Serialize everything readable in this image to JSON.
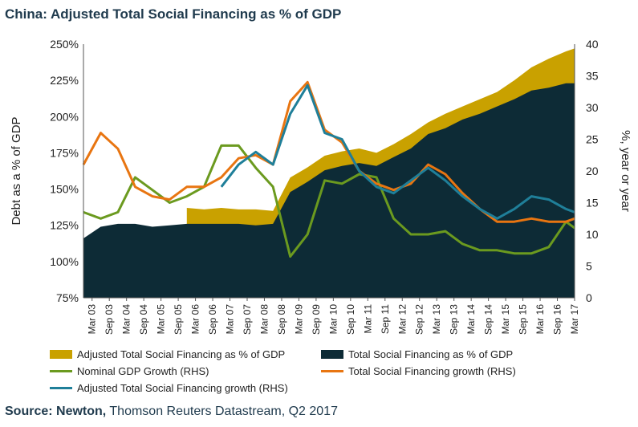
{
  "title": "China: Adjusted Total Social Financing as % of GDP",
  "source": {
    "bold": "Source: Newton,",
    "rest": " Thomson Reuters Datastream, Q2 2017"
  },
  "chart_data": {
    "type": "area",
    "title": "China: Adjusted Total Social Financing as % of GDP",
    "ylabel": "Debt as a % of GDP",
    "y2label": "%, year or year",
    "ylim": [
      75,
      250
    ],
    "y2lim": [
      0,
      40
    ],
    "yticks": [
      "75%",
      "100%",
      "125%",
      "150%",
      "175%",
      "200%",
      "225%",
      "250%"
    ],
    "y2ticks": [
      "0",
      "5",
      "10",
      "15",
      "20",
      "25",
      "30",
      "35",
      "40"
    ],
    "xticks": [
      "Mar 03",
      "Sep 03",
      "Mar 04",
      "Sep 04",
      "Mar 05",
      "Sep 05",
      "Mar 06",
      "Sep 06",
      "Mar 07",
      "Sep 07",
      "Mar 08",
      "Sep 08",
      "Mar 09",
      "Sep 09",
      "Mar 10",
      "Sep 10",
      "Mar 11",
      "Sep 11",
      "Mar 12",
      "Sep 12",
      "Mar 13",
      "Sep 13",
      "Mar 14",
      "Sep 14",
      "Mar 15",
      "Sep 15",
      "Mar 16",
      "Sep 16",
      "Mar 17"
    ],
    "x_start": "2003-03",
    "x_end": "2017-06",
    "legend_position": "bottom",
    "colors": {
      "adjusted_area": "#c9a100",
      "tsf_area": "#0d2b36",
      "gdp_growth": "#6b9a1f",
      "tsf_growth": "#e87511",
      "adj_tsf_growth": "#1f7f99"
    },
    "series": [
      {
        "name": "Adjusted Total Social Financing as % of GDP",
        "axis": "left",
        "style": "area",
        "x": [
          "2006-03",
          "2006-09",
          "2007-03",
          "2007-09",
          "2008-03",
          "2008-09",
          "2009-03",
          "2009-09",
          "2010-03",
          "2010-09",
          "2011-03",
          "2011-09",
          "2012-03",
          "2012-09",
          "2013-03",
          "2013-09",
          "2014-03",
          "2014-09",
          "2015-03",
          "2015-09",
          "2016-03",
          "2016-09",
          "2017-03",
          "2017-06"
        ],
        "values": [
          137,
          136,
          137,
          136,
          136,
          135,
          158,
          165,
          173,
          176,
          178,
          175,
          181,
          188,
          196,
          202,
          207,
          212,
          217,
          225,
          234,
          240,
          245,
          247
        ]
      },
      {
        "name": "Total Social Financing as % of GDP",
        "axis": "left",
        "style": "area",
        "x": [
          "2003-03",
          "2003-09",
          "2004-03",
          "2004-09",
          "2005-03",
          "2005-09",
          "2006-03",
          "2006-09",
          "2007-03",
          "2007-09",
          "2008-03",
          "2008-09",
          "2009-03",
          "2009-09",
          "2010-03",
          "2010-09",
          "2011-03",
          "2011-09",
          "2012-03",
          "2012-09",
          "2013-03",
          "2013-09",
          "2014-03",
          "2014-09",
          "2015-03",
          "2015-09",
          "2016-03",
          "2016-09",
          "2017-03",
          "2017-06"
        ],
        "values": [
          116,
          124,
          126,
          126,
          124,
          125,
          126,
          126,
          126,
          126,
          125,
          126,
          148,
          155,
          163,
          166,
          168,
          166,
          172,
          178,
          188,
          192,
          198,
          202,
          207,
          212,
          218,
          220,
          223,
          223
        ]
      },
      {
        "name": "Nominal GDP Growth (RHS)",
        "axis": "right",
        "style": "line",
        "x": [
          "2003-03",
          "2003-09",
          "2004-03",
          "2004-09",
          "2005-03",
          "2005-09",
          "2006-03",
          "2006-09",
          "2007-03",
          "2007-09",
          "2008-03",
          "2008-09",
          "2009-03",
          "2009-09",
          "2010-03",
          "2010-09",
          "2011-03",
          "2011-09",
          "2012-03",
          "2012-09",
          "2013-03",
          "2013-09",
          "2014-03",
          "2014-09",
          "2015-03",
          "2015-09",
          "2016-03",
          "2016-09",
          "2017-03",
          "2017-06"
        ],
        "values": [
          13.5,
          12.5,
          13.5,
          19,
          17,
          15,
          16,
          17.5,
          24,
          24,
          20.5,
          17.5,
          6.5,
          10,
          18.5,
          18,
          19.5,
          19,
          12.5,
          10,
          10,
          10.5,
          8.5,
          7.5,
          7.5,
          7,
          7,
          8,
          12,
          11
        ]
      },
      {
        "name": "Total Social Financing growth (RHS)",
        "axis": "right",
        "style": "line",
        "x": [
          "2003-03",
          "2003-09",
          "2004-03",
          "2004-09",
          "2005-03",
          "2005-09",
          "2006-03",
          "2006-09",
          "2007-03",
          "2007-09",
          "2008-03",
          "2008-09",
          "2009-03",
          "2009-09",
          "2010-03",
          "2010-09",
          "2011-03",
          "2011-09",
          "2012-03",
          "2012-09",
          "2013-03",
          "2013-09",
          "2014-03",
          "2014-09",
          "2015-03",
          "2015-09",
          "2016-03",
          "2016-09",
          "2017-03",
          "2017-06"
        ],
        "values": [
          21,
          26,
          23.5,
          17.5,
          16,
          15.5,
          17.5,
          17.5,
          19,
          22,
          22.5,
          21,
          31,
          34,
          26.5,
          24.5,
          20,
          18,
          17,
          18,
          21,
          19.5,
          16.5,
          14,
          12,
          12,
          12.5,
          12,
          12,
          12.5
        ]
      },
      {
        "name": "Adjusted Total Social Financing growth (RHS)",
        "axis": "right",
        "style": "line",
        "x": [
          "2007-03",
          "2007-09",
          "2008-03",
          "2008-09",
          "2009-03",
          "2009-09",
          "2010-03",
          "2010-09",
          "2011-03",
          "2011-09",
          "2012-03",
          "2012-09",
          "2013-03",
          "2013-09",
          "2014-03",
          "2014-09",
          "2015-03",
          "2015-09",
          "2016-03",
          "2016-09",
          "2017-03",
          "2017-06"
        ],
        "values": [
          17.5,
          21,
          23,
          21,
          29,
          33.5,
          26,
          25,
          20,
          17.5,
          16.5,
          18.5,
          20.5,
          18.5,
          16,
          14,
          12.5,
          14,
          16,
          15.5,
          14,
          13.5
        ]
      }
    ]
  }
}
